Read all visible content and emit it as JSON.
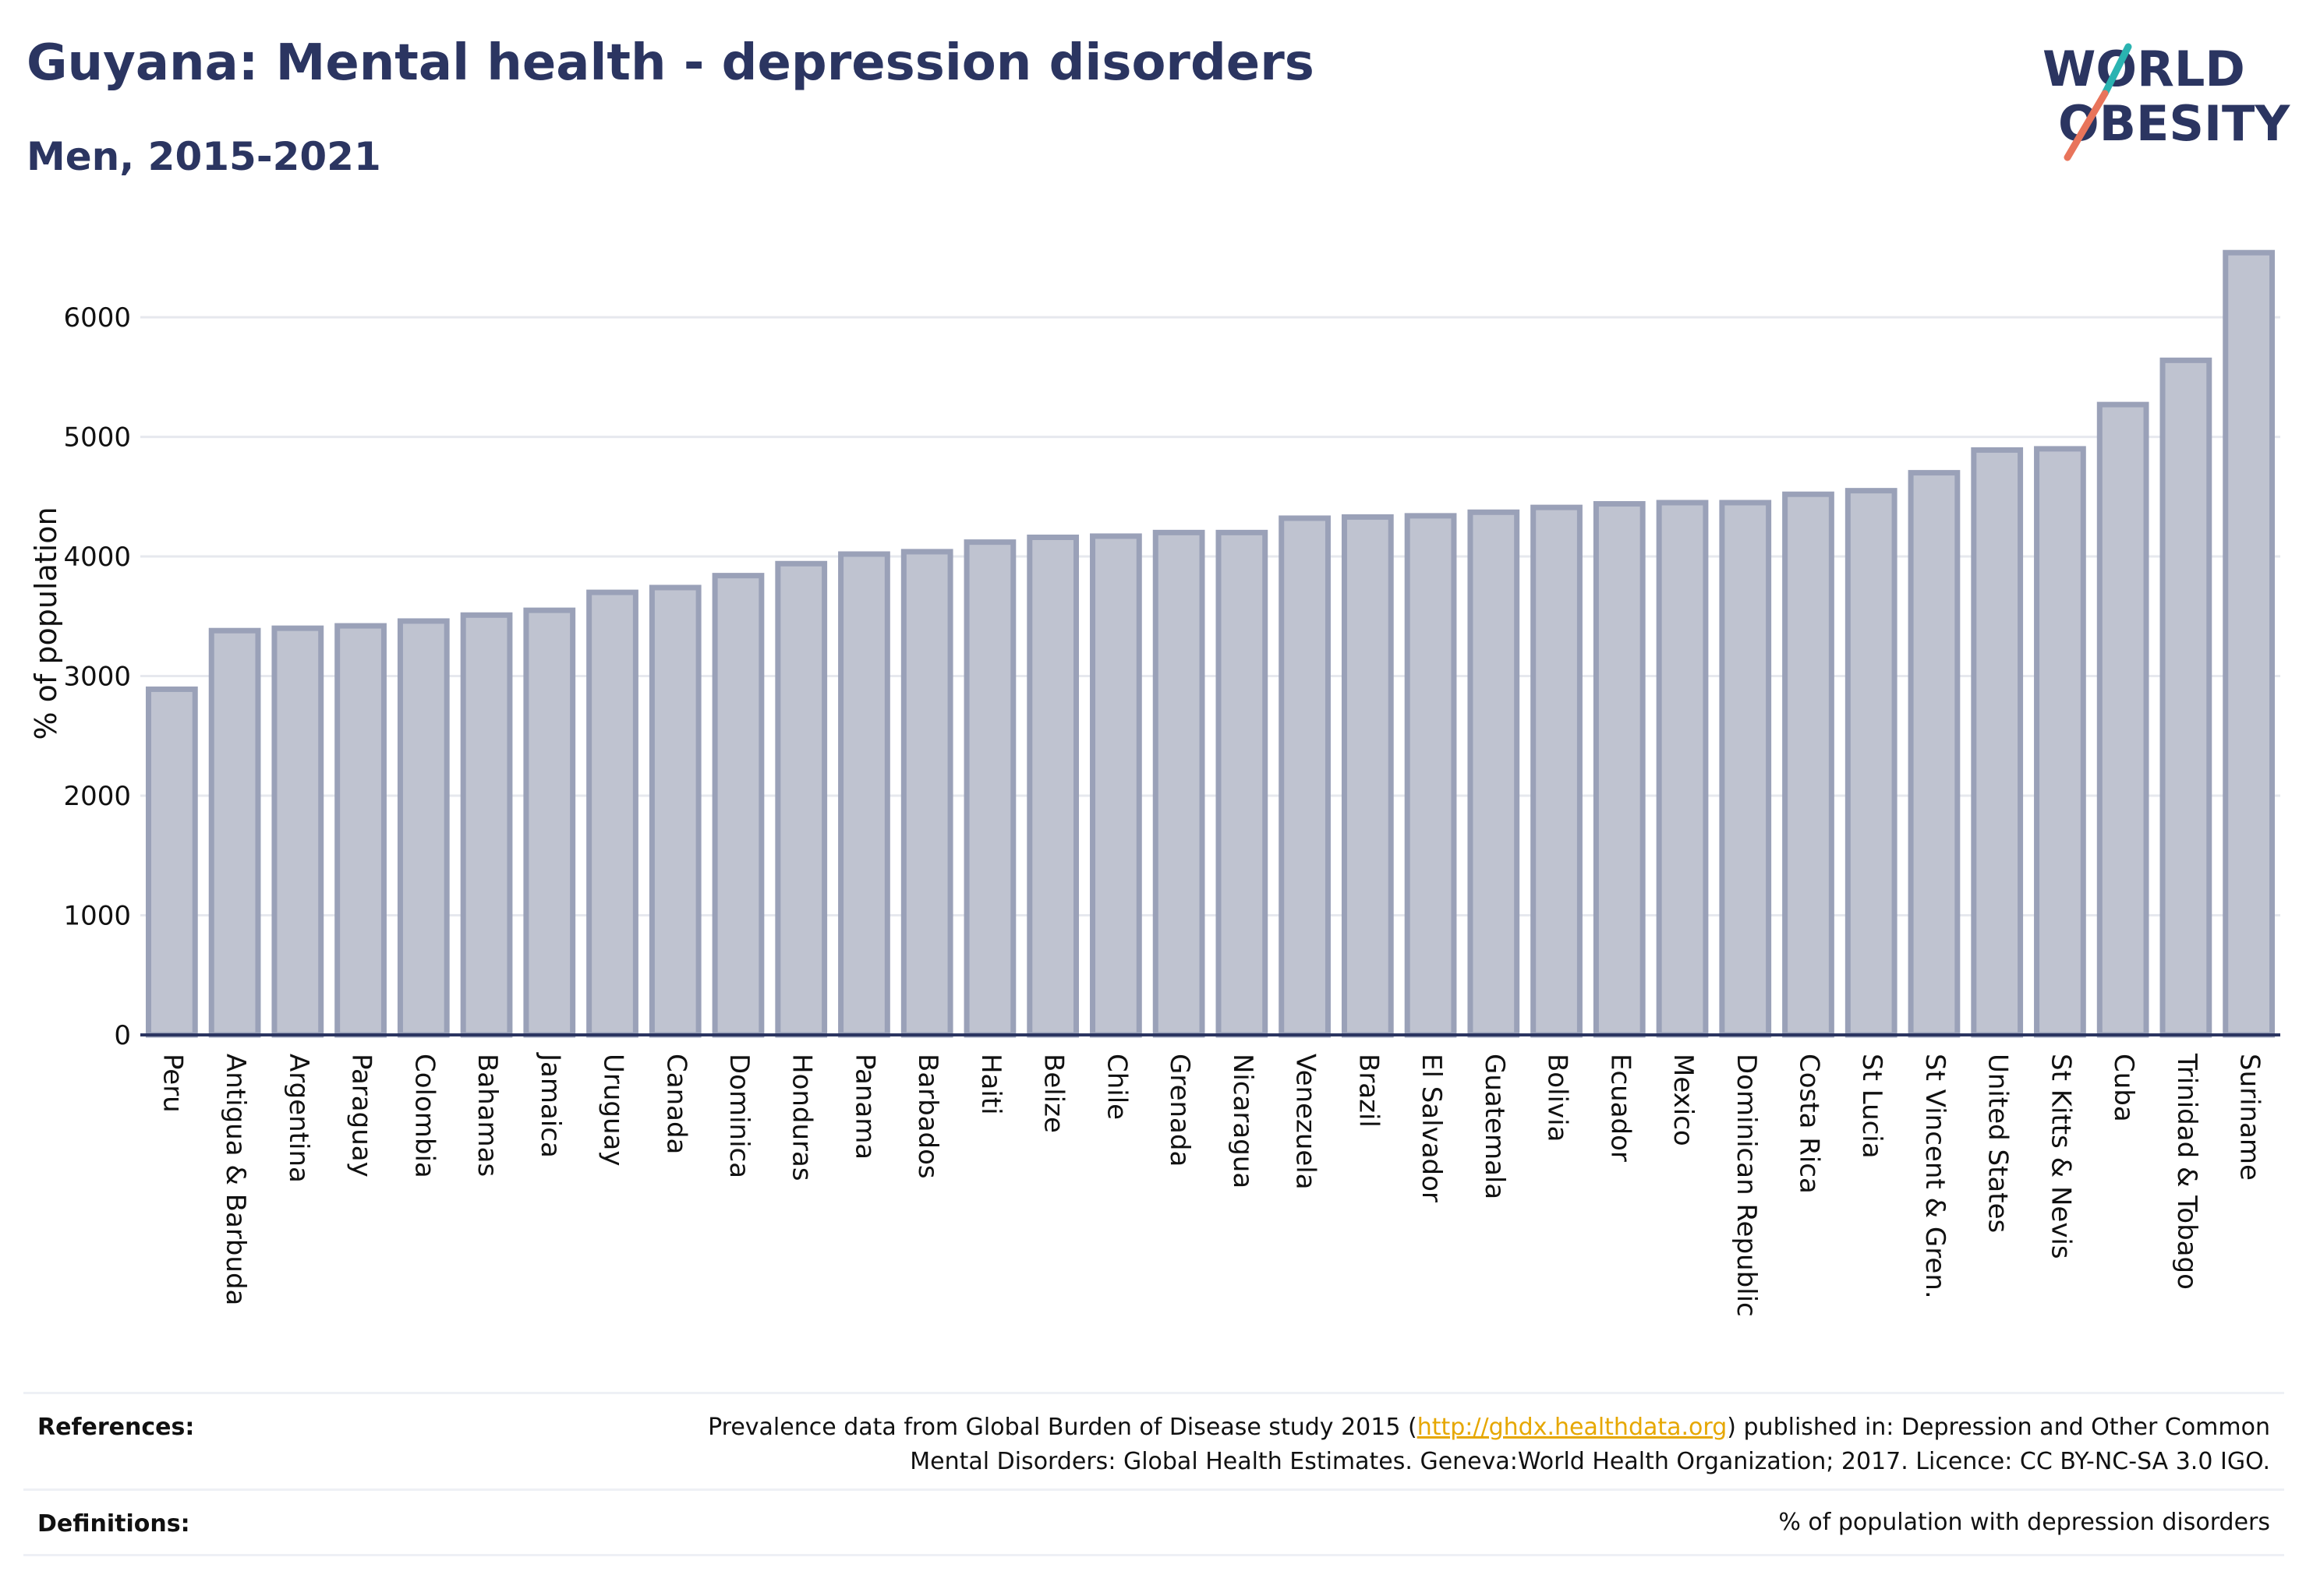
{
  "header": {
    "title": "Guyana: Mental health - depression disorders",
    "subtitle": "Men, 2015-2021"
  },
  "logo": {
    "line1": "WORLD",
    "line2": "OBESITY",
    "colors": {
      "text": "#2b3561",
      "slash_teal": "#2ab3b1",
      "slash_coral": "#e8745b"
    }
  },
  "chart_data": {
    "type": "bar",
    "title": "",
    "xlabel": "",
    "ylabel": "% of population",
    "ylim": [
      0,
      6600
    ],
    "yticks": [
      0,
      1000,
      2000,
      3000,
      4000,
      5000,
      6000
    ],
    "grid": true,
    "bar_fill": "#bfc3d0",
    "bar_stroke": "#9aa1b8",
    "axis_color": "#2b3561",
    "categories": [
      "Peru",
      "Antigua & Barbuda",
      "Argentina",
      "Paraguay",
      "Colombia",
      "Bahamas",
      "Jamaica",
      "Uruguay",
      "Canada",
      "Dominica",
      "Honduras",
      "Panama",
      "Barbados",
      "Haiti",
      "Belize",
      "Chile",
      "Grenada",
      "Nicaragua",
      "Venezuela",
      "Brazil",
      "El Salvador",
      "Guatemala",
      "Bolivia",
      "Ecuador",
      "Mexico",
      "Dominican Republic",
      "Costa Rica",
      "St Lucia",
      "St Vincent & Gren.",
      "United States",
      "St Kitts & Nevis",
      "Cuba",
      "Trinidad & Tobago",
      "Suriname"
    ],
    "values": [
      2890,
      3380,
      3400,
      3420,
      3460,
      3510,
      3550,
      3700,
      3740,
      3840,
      3940,
      4020,
      4040,
      4120,
      4160,
      4170,
      4200,
      4200,
      4320,
      4330,
      4340,
      4370,
      4410,
      4440,
      4450,
      4450,
      4520,
      4550,
      4700,
      4890,
      4900,
      5270,
      5640,
      6540
    ]
  },
  "footer": {
    "references_label": "References:",
    "references_pre": "Prevalence data from Global Burden of Disease study 2015 (",
    "references_link": "http://ghdx.healthdata.org",
    "references_post": ") published in: Depression and Other Common",
    "references_line2": "Mental Disorders: Global Health Estimates. Geneva:World Health Organization; 2017. Licence: CC BY-NC-SA 3.0 IGO.",
    "definitions_label": "Definitions:",
    "definitions_text": "% of population with depression disorders"
  }
}
